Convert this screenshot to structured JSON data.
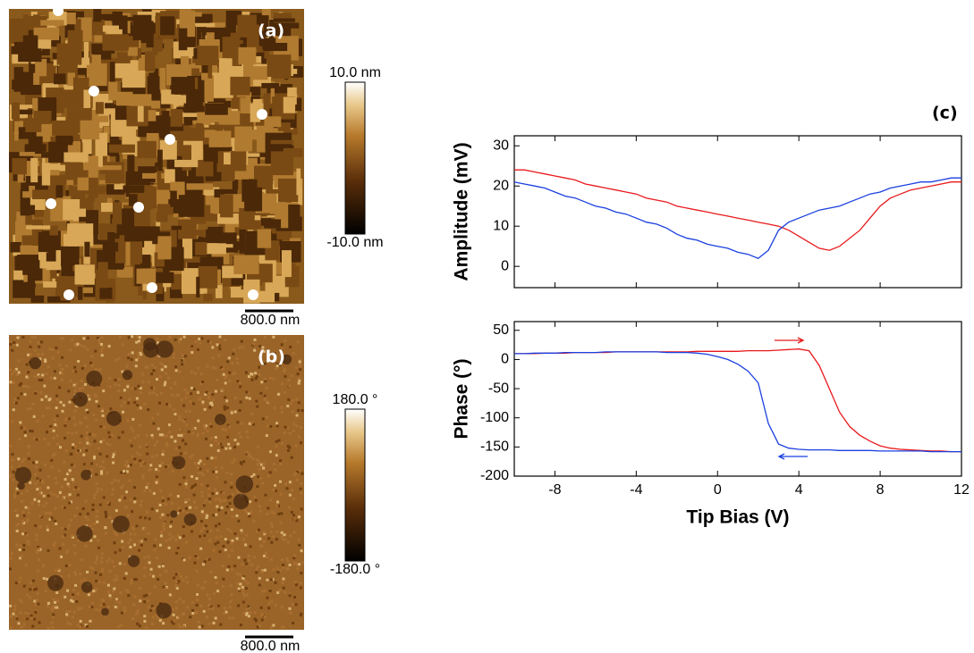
{
  "images": [
    {
      "label": "(a)",
      "scale_bar": "800.0 nm",
      "colorbar_max": "10.0 nm",
      "colorbar_min": "-10.0 nm"
    },
    {
      "label": "(b)",
      "scale_bar": "800.0 nm",
      "colorbar_max": "180.0 °",
      "colorbar_min": "-180.0 °"
    }
  ],
  "chart_data": [
    {
      "type": "line",
      "panel_label": "(c)",
      "y_label": "Amplitude (mV)",
      "x": [
        -10,
        -9.5,
        -9,
        -8.5,
        -8,
        -7.5,
        -7,
        -6.5,
        -6,
        -5.5,
        -5,
        -4.5,
        -4,
        -3.5,
        -3,
        -2.5,
        -2,
        -1.5,
        -1,
        -0.5,
        0,
        0.5,
        1,
        1.5,
        2,
        2.5,
        3,
        3.5,
        4,
        4.5,
        5,
        5.5,
        6,
        6.5,
        7,
        7.5,
        8,
        8.5,
        9,
        9.5,
        10,
        10.5,
        11,
        11.5,
        12
      ],
      "series": [
        {
          "color": "#e8191c",
          "values": [
            24,
            24,
            23.5,
            23,
            22.5,
            22,
            21.5,
            20.5,
            20,
            19.5,
            19,
            18.5,
            18,
            17,
            16.5,
            16,
            15,
            14.5,
            14,
            13.5,
            13,
            12.5,
            12,
            11.5,
            11,
            10.5,
            10,
            9,
            7.5,
            6,
            4.5,
            4,
            5,
            7,
            9,
            12,
            15,
            17,
            18,
            19,
            19.5,
            20,
            20.5,
            21,
            21
          ]
        },
        {
          "color": "#1a3fe0",
          "values": [
            21,
            20.5,
            20,
            19.5,
            18.5,
            17.5,
            17,
            16,
            15,
            14.5,
            13.5,
            13,
            12,
            11,
            10.5,
            9.5,
            8,
            7,
            6.5,
            5.5,
            5,
            4.5,
            3.5,
            3,
            2,
            4,
            9,
            11,
            12,
            13,
            14,
            14.5,
            15,
            16,
            17,
            18,
            18.5,
            19.5,
            20,
            20.5,
            21,
            21,
            21.5,
            22,
            22
          ]
        }
      ],
      "xlim": [
        -10,
        12
      ],
      "xticks": [
        -8,
        -4,
        0,
        4,
        8,
        12
      ],
      "ylim": [
        -5.3,
        32.5
      ],
      "yticks": [
        0,
        10,
        20,
        30
      ]
    },
    {
      "type": "line",
      "y_label": "Phase (°)",
      "x_label": "Tip Bias (V)",
      "x": [
        -10,
        -9.5,
        -9,
        -8.5,
        -8,
        -7.5,
        -7,
        -6.5,
        -6,
        -5.5,
        -5,
        -4.5,
        -4,
        -3.5,
        -3,
        -2.5,
        -2,
        -1.5,
        -1,
        -0.5,
        0,
        0.5,
        1,
        1.5,
        2,
        2.5,
        3,
        3.5,
        4,
        4.5,
        5,
        5.5,
        6,
        6.5,
        7,
        7.5,
        8,
        8.5,
        9,
        9.5,
        10,
        10.5,
        11,
        11.5,
        12
      ],
      "series": [
        {
          "color": "#e8191c",
          "values": [
            10,
            10,
            10,
            11,
            11,
            11,
            12,
            12,
            12,
            12,
            13,
            13,
            13,
            13,
            13,
            13,
            13,
            13,
            14,
            14,
            14,
            14,
            14,
            15,
            15,
            15,
            16,
            17,
            18,
            15,
            -10,
            -50,
            -90,
            -115,
            -130,
            -140,
            -148,
            -152,
            -154,
            -155,
            -156,
            -157,
            -157,
            -158,
            -158
          ]
        },
        {
          "color": "#1a3fe0",
          "values": [
            10,
            10,
            11,
            11,
            11,
            12,
            12,
            12,
            12,
            13,
            13,
            13,
            13,
            13,
            13,
            12,
            12,
            12,
            11,
            9,
            5,
            0,
            -8,
            -20,
            -40,
            -110,
            -145,
            -152,
            -154,
            -155,
            -155,
            -155,
            -156,
            -156,
            -156,
            -156,
            -157,
            -157,
            -157,
            -157,
            -157,
            -158,
            -158,
            -158,
            -158
          ]
        }
      ],
      "xlim": [
        -10,
        12
      ],
      "xticks": [
        -8,
        -4,
        0,
        4,
        8,
        12
      ],
      "ylim": [
        -200,
        65
      ],
      "yticks": [
        50,
        0,
        -50,
        -100,
        -150,
        -200
      ]
    }
  ]
}
